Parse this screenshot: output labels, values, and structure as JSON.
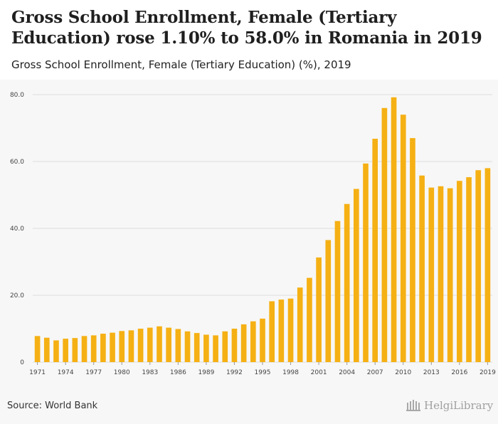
{
  "title": "Gross School Enrollment, Female (Tertiary Education) rose 1.10% to 58.0% in Romania in 2019",
  "subtitle": "Gross School Enrollment, Female (Tertiary Education) (%), 2019",
  "source": "Source: World Bank",
  "logo": "HelgiLibrary",
  "colors": {
    "bar": "#f5b014",
    "grid": "#dddddd",
    "panel": "#f7f7f7"
  },
  "chart_data": {
    "type": "bar",
    "title": "Gross School Enrollment, Female (Tertiary Education) (%)",
    "xlabel": "",
    "ylabel": "",
    "ylim": [
      0,
      80
    ],
    "yticks": [
      "0",
      "20.0",
      "40.0",
      "60.0",
      "80.0"
    ],
    "ytick_values": [
      0,
      20,
      40,
      60,
      80
    ],
    "grid": true,
    "x_tick_labels": [
      "1971",
      "1974",
      "1977",
      "1980",
      "1983",
      "1986",
      "1989",
      "1992",
      "1995",
      "1998",
      "2001",
      "2004",
      "2007",
      "2010",
      "2013",
      "2016",
      "2019"
    ],
    "categories": [
      "1971",
      "1972",
      "1973",
      "1974",
      "1975",
      "1976",
      "1977",
      "1978",
      "1979",
      "1980",
      "1981",
      "1982",
      "1983",
      "1984",
      "1985",
      "1986",
      "1987",
      "1988",
      "1989",
      "1990",
      "1991",
      "1992",
      "1993",
      "1994",
      "1995",
      "1996",
      "1997",
      "1998",
      "1999",
      "2000",
      "2001",
      "2002",
      "2003",
      "2004",
      "2005",
      "2006",
      "2007",
      "2008",
      "2009",
      "2010",
      "2011",
      "2012",
      "2013",
      "2014",
      "2015",
      "2016",
      "2017",
      "2018",
      "2019"
    ],
    "values": [
      7.8,
      7.3,
      6.5,
      7.0,
      7.2,
      7.8,
      8.0,
      8.5,
      8.8,
      9.3,
      9.5,
      10.0,
      10.3,
      10.7,
      10.3,
      9.9,
      9.2,
      8.7,
      8.2,
      8.0,
      9.2,
      10.0,
      11.3,
      12.2,
      13.0,
      18.2,
      18.7,
      19.0,
      22.3,
      25.2,
      31.3,
      36.5,
      42.2,
      47.3,
      51.8,
      59.4,
      66.8,
      76.0,
      79.2,
      74.0,
      67.0,
      55.8,
      52.2,
      52.6,
      52.0,
      54.2,
      55.3,
      57.4,
      58.0
    ]
  }
}
